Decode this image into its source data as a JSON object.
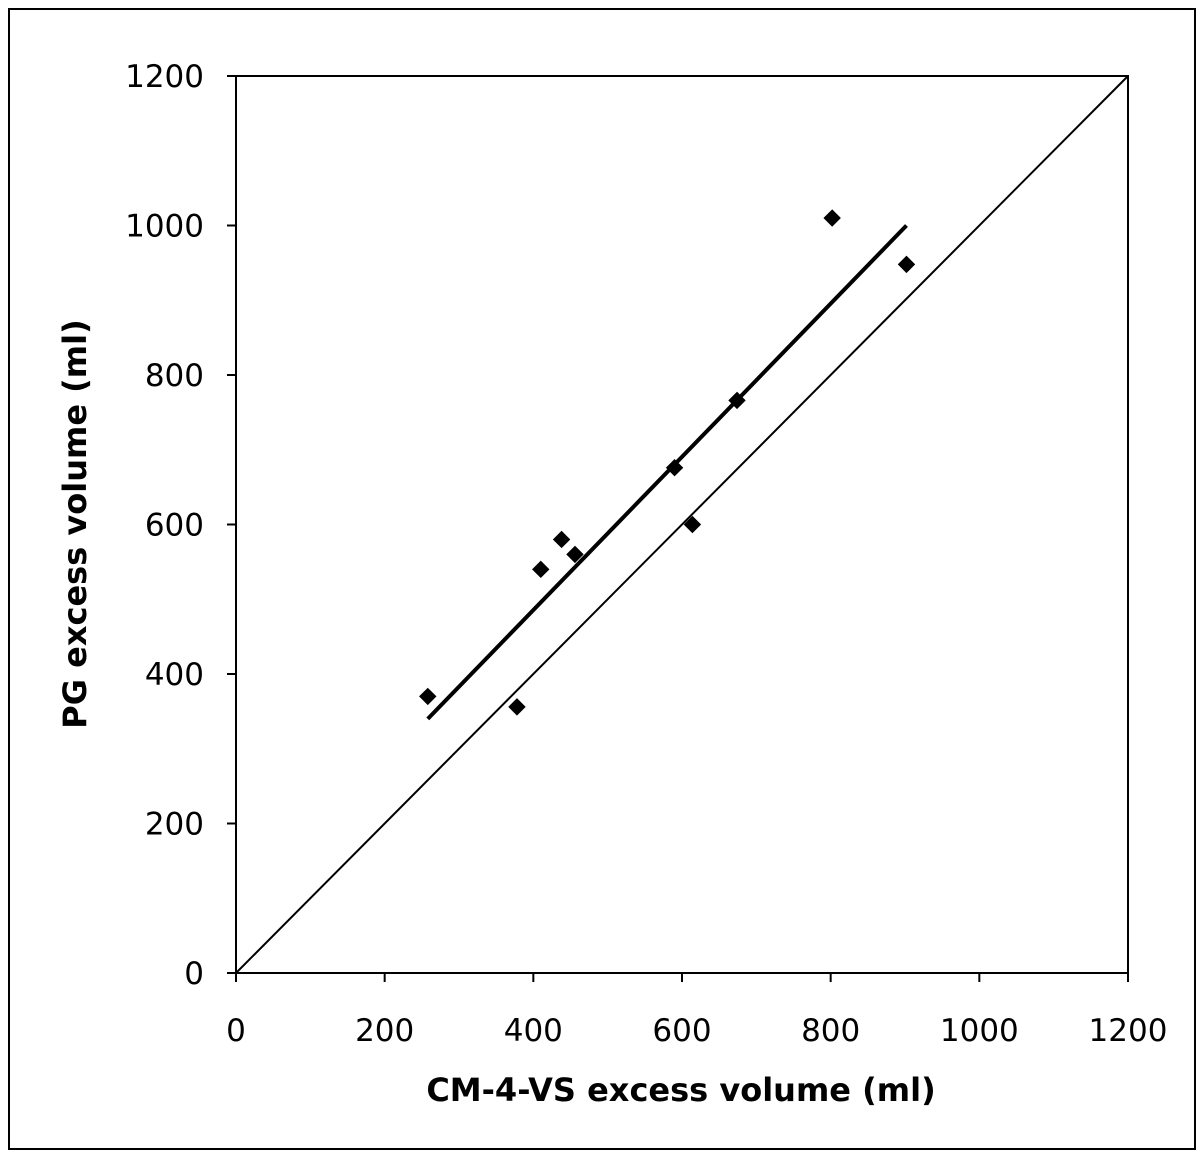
{
  "chart_data": {
    "type": "scatter",
    "title": "",
    "xlabel": "CM-4-VS excess volume (ml)",
    "ylabel": "PG excess volume (ml)",
    "xlim": [
      0,
      1200
    ],
    "ylim": [
      0,
      1200
    ],
    "xticks": [
      "0",
      "200",
      "400",
      "600",
      "800",
      "1000",
      "1200"
    ],
    "yticks": [
      "0",
      "200",
      "400",
      "600",
      "800",
      "1000",
      "1200"
    ],
    "grid": false,
    "legend": "none",
    "series": [
      {
        "marker": "diamond",
        "color": "#000000",
        "points": [
          {
            "x": 258,
            "y": 370
          },
          {
            "x": 378,
            "y": 356
          },
          {
            "x": 410,
            "y": 540
          },
          {
            "x": 438,
            "y": 580
          },
          {
            "x": 456,
            "y": 560
          },
          {
            "x": 590,
            "y": 676
          },
          {
            "x": 614,
            "y": 600
          },
          {
            "x": 674,
            "y": 766
          },
          {
            "x": 802,
            "y": 1010
          },
          {
            "x": 902,
            "y": 948
          }
        ]
      }
    ],
    "lines": [
      {
        "kind": "regression",
        "stroke_color": "#000000",
        "x": [
          258,
          902
        ],
        "y": [
          340,
          1000
        ]
      },
      {
        "kind": "identity",
        "stroke_color": "#000000",
        "x": [
          0,
          1200
        ],
        "y": [
          0,
          1200
        ]
      }
    ]
  }
}
